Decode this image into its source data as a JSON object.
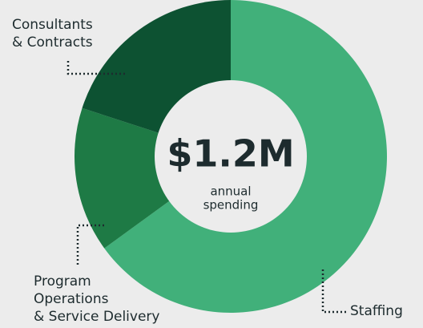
{
  "chart_data": {
    "type": "donut",
    "categories": [
      [
        "Staffing"
      ],
      [
        "Program",
        "Operations",
        "& Service Delivery"
      ],
      [
        "Consultants",
        "& Contracts"
      ]
    ],
    "values": [
      65,
      15,
      20
    ],
    "colors": [
      "#41b07a",
      "#1e7a45",
      "#0d5232"
    ],
    "center_label": "$1.2M",
    "center_sublabel": [
      "annual",
      "spending"
    ]
  }
}
